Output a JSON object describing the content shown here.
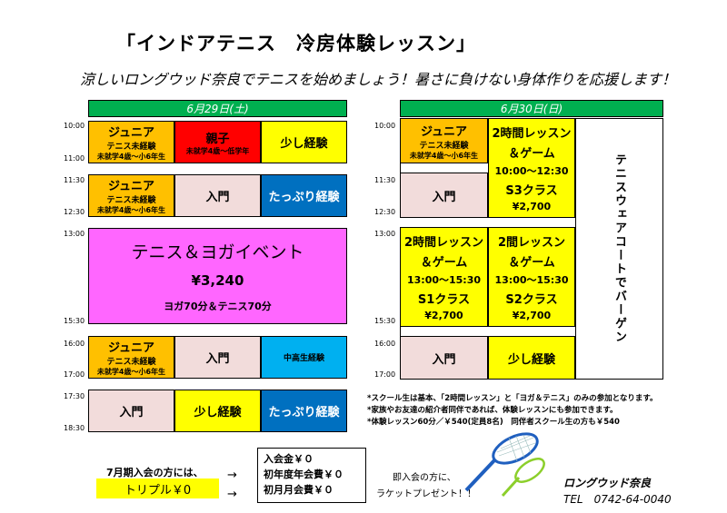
{
  "title": "「インドアテニス　冷房体験レッスン」",
  "subtitle": "涼しいロングウッド奈良でテニスを始めましょう！暑さに負けない身体作りを応援します！",
  "day1": {
    "header": "6月29日(土)",
    "times": [
      "10:00",
      "11:00",
      "11:30",
      "12:30",
      "13:00",
      "15:30",
      "16:00",
      "17:00",
      "17:30",
      "18:30"
    ],
    "b1": {
      "c1": {
        "main": "ジュニア",
        "sub": "テニス未経験",
        "tiny": "未就学4歳～小6年生"
      },
      "c2": {
        "main": "親子",
        "tiny": "未就学4歳～低学年"
      },
      "c3": {
        "main": "少し経験"
      }
    },
    "b2": {
      "c1": {
        "main": "ジュニア",
        "sub": "テニス未経験",
        "tiny": "未就学4歳～小6年生"
      },
      "c2": {
        "main": "入門"
      },
      "c3": {
        "main": "たっぷり経験"
      }
    },
    "event": {
      "title": "テニス＆ヨガイベント",
      "price": "¥3,240",
      "detail": "ヨガ70分＆テニス70分"
    },
    "b4": {
      "c1": {
        "main": "ジュニア",
        "sub": "テニス未経験",
        "tiny": "未就学4歳～小6年生"
      },
      "c2": {
        "main": "入門"
      },
      "c3": {
        "main": "中高生経験"
      }
    },
    "b5": {
      "c1": {
        "main": "入門"
      },
      "c2": {
        "main": "少し経験"
      },
      "c3": {
        "main": "たっぷり経験"
      }
    }
  },
  "day2": {
    "header": "6月30日(日)",
    "times": [
      "10:00",
      "11:30",
      "12:30",
      "13:00",
      "15:30",
      "16:00",
      "17:00"
    ],
    "junior": {
      "main": "ジュニア",
      "sub": "テニス未経験",
      "tiny": "未就学4歳～小6年生"
    },
    "nyumon1": "入門",
    "two_hour_a": {
      "line1": "2時間レッスン",
      "line2": "＆ゲーム",
      "line3": "10:00～12:30",
      "line4": "S3クラス",
      "line5": "¥2,700"
    },
    "two_hour_b": {
      "line1": "2時間レッスン",
      "line2": "＆ゲーム",
      "line3": "13:00～15:30",
      "line4": "S1クラス",
      "line5": "¥2,700"
    },
    "two_hour_c": {
      "line1": "2間レッスン",
      "line2": "＆ゲーム",
      "line3": "13:00～15:30",
      "line4": "S2クラス",
      "line5": "¥2,700"
    },
    "nyumon2": "入門",
    "sukoshi": "少し経験",
    "bargain": "テニスウェアコートでバーゲン"
  },
  "notes": [
    "*スクール生は基本、「2時間レッスン」と「ヨガ＆テニス」のみの参加となります。",
    "*家族やお友達の紹介者同伴であれば、体験レッスンにも参加できます。",
    "*体験レッスン60分／￥540(定員8名)　同伴者スクール生の方も￥540"
  ],
  "july": {
    "label": "7月期入会の方には、",
    "triple": "トリプル￥0",
    "arrow": "→",
    "fees": [
      "入会金￥０",
      "初年度年会費￥０",
      "初月月会費￥０"
    ]
  },
  "racket": {
    "line1": "即入会の方に、",
    "line2": "ラケットプレゼント！！"
  },
  "footer": {
    "name": "ロングウッド奈良",
    "tel": "TEL　0742-64-0040"
  },
  "colors": {
    "header_green": "#00b050",
    "junior_orange": "#ffc000",
    "red": "#ff0000",
    "yellow": "#ffff00",
    "pink": "#f2dcdb",
    "blue": "#0070c0",
    "cyan": "#00b0f0",
    "magenta": "#ff66ff"
  }
}
